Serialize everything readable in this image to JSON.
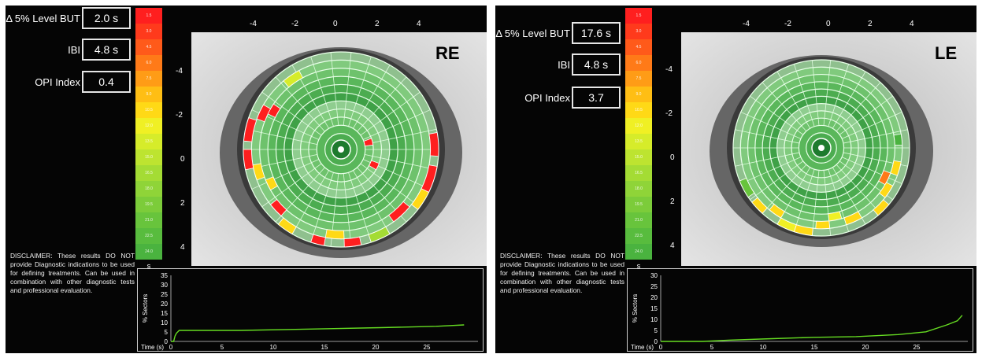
{
  "scale": {
    "labels": [
      "1.5",
      "3.0",
      "4.5",
      "6.0",
      "7.5",
      "9.0",
      "10.5",
      "12.0",
      "13.5",
      "15.0",
      "16.5",
      "18.0",
      "19.5",
      "21.0",
      "22.5",
      "24.0"
    ],
    "colors": [
      "#ff1f1f",
      "#ff3a1c",
      "#ff5a1a",
      "#ff7a18",
      "#ff9c16",
      "#ffbe14",
      "#ffd916",
      "#f0f024",
      "#d6ec2a",
      "#bde430",
      "#a4dc34",
      "#8fd438",
      "#7ccc3a",
      "#68c43c",
      "#58bc3e",
      "#4ab33f"
    ],
    "unit": "s"
  },
  "axes": {
    "top_ticks": [
      "-4",
      "-2",
      "0",
      "2",
      "4"
    ],
    "left_ticks": [
      "-4",
      "-2",
      "0",
      "2",
      "4"
    ]
  },
  "disclaimer": "DISCLAIMER: These results DO NOT provide Diagnostic indications to be used for defining treatments. Can be used in combination with other diagnostic tests and professional evaluation.",
  "graph": {
    "y_label": "% Sectors",
    "x_label": "Time (s)",
    "x_ticks": [
      "0",
      "5",
      "10",
      "15",
      "20",
      "25"
    ]
  },
  "panels": [
    {
      "eye": "RE",
      "metrics": [
        {
          "label": "Δ 5% Level BUT",
          "value": "2.0 s"
        },
        {
          "label": "IBI",
          "value": "4.8 s"
        },
        {
          "label": "OPI Index",
          "value": "0.4"
        }
      ],
      "y_ticks": [
        "35",
        "30",
        "25",
        "20",
        "15",
        "10",
        "5",
        "0"
      ],
      "line_color": "#66dd22"
    },
    {
      "eye": "LE",
      "metrics": [
        {
          "label": "Δ 5% Level BUT",
          "value": "17.6 s"
        },
        {
          "label": "IBI",
          "value": "4.8 s"
        },
        {
          "label": "OPI Index",
          "value": "3.7"
        }
      ],
      "y_ticks": [
        "30",
        "25",
        "20",
        "15",
        "10",
        "5",
        "0"
      ],
      "line_color": "#66dd22"
    }
  ]
}
